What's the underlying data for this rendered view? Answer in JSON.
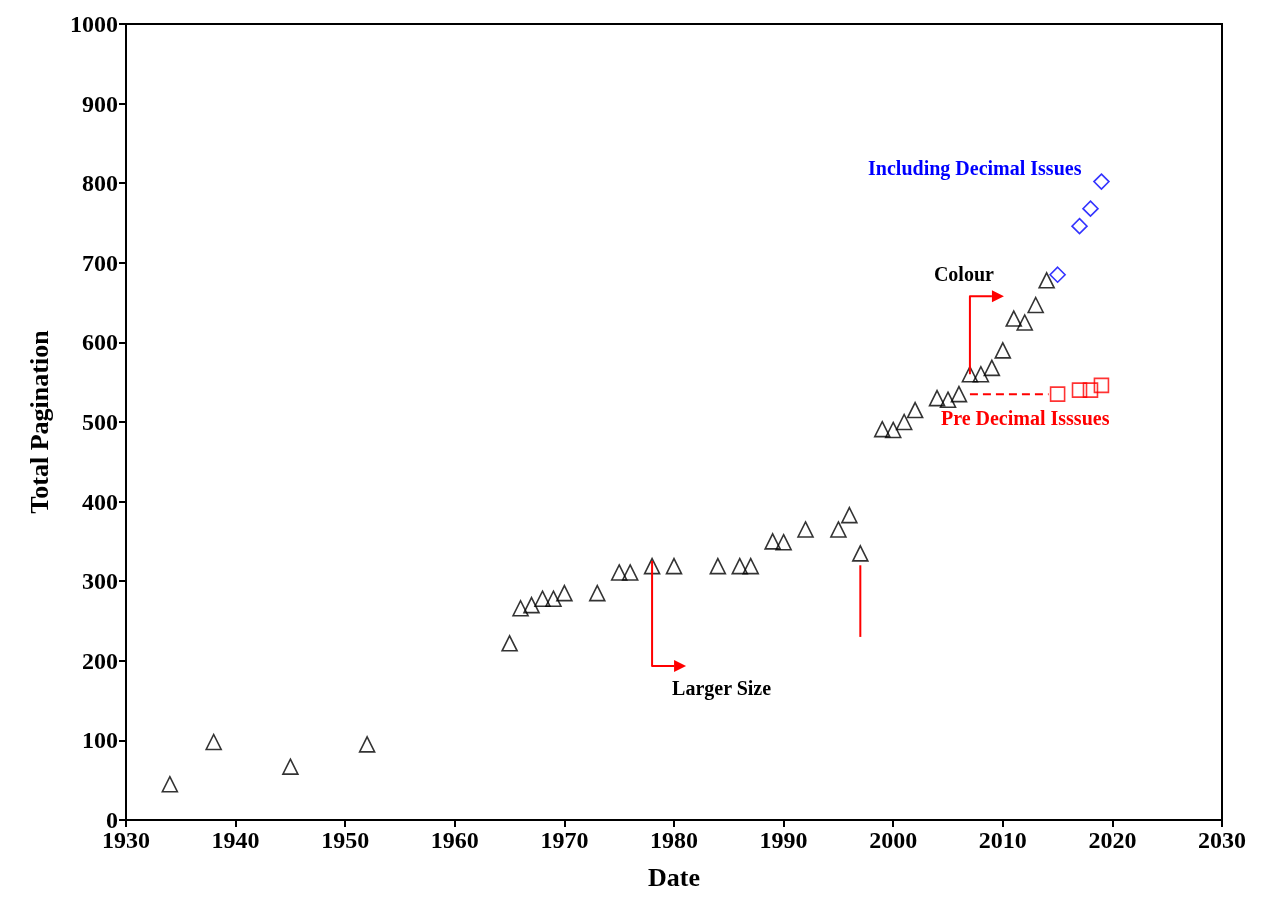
{
  "chart_data": {
    "type": "scatter",
    "xlabel": "Date",
    "ylabel": "Total Pagination",
    "xlim": [
      1930,
      2030
    ],
    "xticks": [
      1930,
      1940,
      1950,
      1960,
      1970,
      1980,
      1990,
      2000,
      2010,
      2020,
      2030
    ],
    "ylim": [
      0,
      1000
    ],
    "yticks": [
      0,
      100,
      200,
      300,
      400,
      500,
      600,
      700,
      800,
      900,
      1000
    ],
    "grid": false,
    "legend": "right",
    "series": [
      {
        "color": "#000000",
        "marker": "triangle",
        "x": [
          1934,
          1938,
          1945,
          1952,
          1965,
          1966,
          1967,
          1968,
          1969,
          1970,
          1973,
          1975,
          1976,
          1978,
          1980,
          1984,
          1986,
          1987,
          1989,
          1990,
          1992,
          1995,
          1996,
          1997,
          1999,
          2000,
          2001,
          2002,
          2004,
          2005,
          2006,
          2007,
          2008,
          2009,
          2010,
          2011,
          2012,
          2013,
          2014
        ],
        "values": [
          45,
          98,
          67,
          95,
          222,
          266,
          270,
          278,
          278,
          285,
          285,
          311,
          311,
          319,
          319,
          319,
          319,
          319,
          350,
          349,
          365,
          365,
          383,
          335,
          491,
          490,
          500,
          515,
          530,
          528,
          535,
          560,
          560,
          568,
          590,
          630,
          625,
          647,
          678
        ]
      },
      {
        "name": "Including Decimal Issues",
        "color": "#0000ff",
        "marker": "diamond",
        "x": [
          2015,
          2017,
          2018,
          2019
        ],
        "values": [
          685,
          746,
          768,
          802
        ]
      },
      {
        "name": "Pre Decimal Isssues",
        "color": "#ff0000",
        "marker": "square",
        "x": [
          2015,
          2017,
          2018,
          2019
        ],
        "values": [
          535,
          540,
          540,
          546
        ]
      }
    ],
    "annotations": [
      {
        "text": "Larger Size",
        "x": 1978,
        "y": 319
      },
      {
        "text": "Colour",
        "x": 2007,
        "y": 560
      }
    ]
  }
}
